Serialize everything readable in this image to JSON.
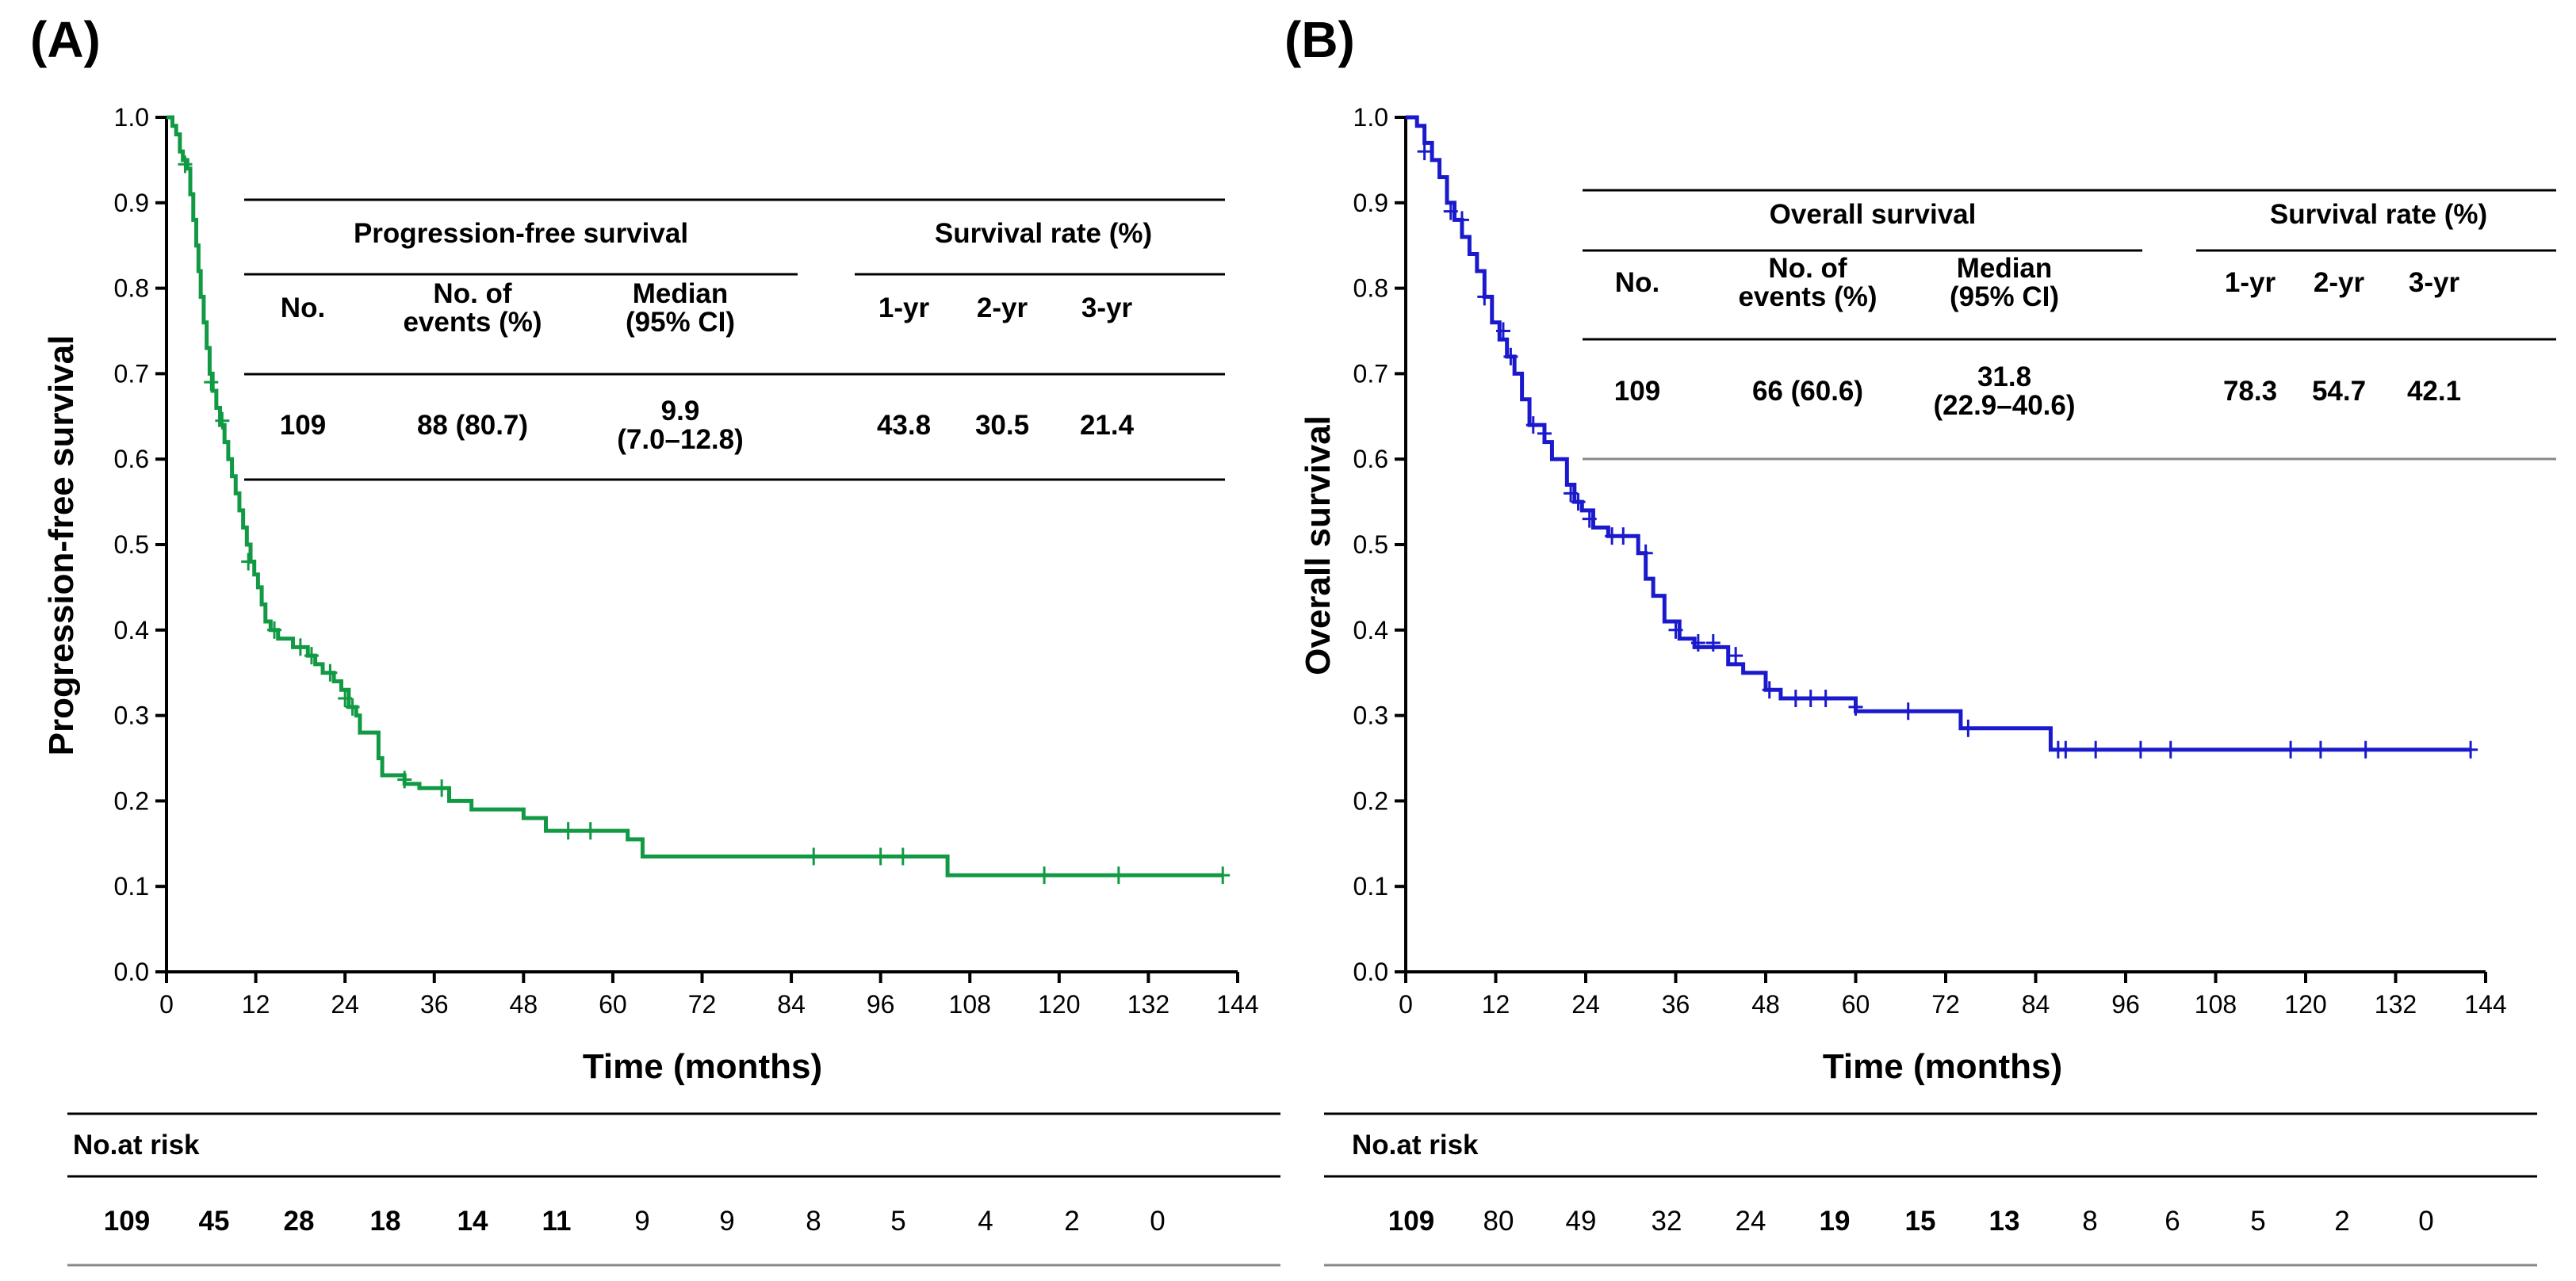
{
  "chart_data": [
    {
      "type": "line",
      "panel_label": "(A)",
      "xlabel": "Time (months)",
      "ylabel": "Progression-free survival",
      "xlim": [
        0,
        144
      ],
      "ylim": [
        0,
        1.0
      ],
      "xticks": [
        "0",
        "12",
        "24",
        "36",
        "48",
        "60",
        "72",
        "84",
        "96",
        "108",
        "120",
        "132",
        "144"
      ],
      "yticks": [
        "0.0",
        "0.1",
        "0.2",
        "0.3",
        "0.4",
        "0.5",
        "0.6",
        "0.7",
        "0.8",
        "0.9",
        "1.0"
      ],
      "color": "#119944",
      "series": [
        {
          "name": "Progression-free survival",
          "points": [
            [
              0,
              1.0
            ],
            [
              0.8,
              0.99
            ],
            [
              1.3,
              0.98
            ],
            [
              1.8,
              0.96
            ],
            [
              2.2,
              0.95
            ],
            [
              2.8,
              0.94
            ],
            [
              3.2,
              0.91
            ],
            [
              3.6,
              0.88
            ],
            [
              4.0,
              0.85
            ],
            [
              4.3,
              0.82
            ],
            [
              4.6,
              0.79
            ],
            [
              5.0,
              0.76
            ],
            [
              5.4,
              0.73
            ],
            [
              5.8,
              0.7
            ],
            [
              6.2,
              0.68
            ],
            [
              6.7,
              0.66
            ],
            [
              7.2,
              0.64
            ],
            [
              7.8,
              0.62
            ],
            [
              8.3,
              0.6
            ],
            [
              8.8,
              0.58
            ],
            [
              9.3,
              0.56
            ],
            [
              9.8,
              0.54
            ],
            [
              10.3,
              0.52
            ],
            [
              10.8,
              0.5
            ],
            [
              11.3,
              0.48
            ],
            [
              11.8,
              0.465
            ],
            [
              12.3,
              0.45
            ],
            [
              12.8,
              0.43
            ],
            [
              13.3,
              0.41
            ],
            [
              14.0,
              0.4
            ],
            [
              15.0,
              0.39
            ],
            [
              17.0,
              0.38
            ],
            [
              19.0,
              0.37
            ],
            [
              20.0,
              0.36
            ],
            [
              21.0,
              0.35
            ],
            [
              22.5,
              0.34
            ],
            [
              23.5,
              0.33
            ],
            [
              24.5,
              0.31
            ],
            [
              25.5,
              0.3
            ],
            [
              26.0,
              0.28
            ],
            [
              28.5,
              0.25
            ],
            [
              29.0,
              0.23
            ],
            [
              32.0,
              0.22
            ],
            [
              34.0,
              0.215
            ],
            [
              38.0,
              0.2
            ],
            [
              41.0,
              0.19
            ],
            [
              48.0,
              0.18
            ],
            [
              51.0,
              0.165
            ],
            [
              62.0,
              0.155
            ],
            [
              64.0,
              0.135
            ],
            [
              105.0,
              0.113
            ],
            [
              142.0,
              0.113
            ]
          ],
          "censored": [
            [
              2.5,
              0.945
            ],
            [
              6.0,
              0.69
            ],
            [
              7.5,
              0.645
            ],
            [
              11.0,
              0.48
            ],
            [
              14.5,
              0.4
            ],
            [
              18.0,
              0.38
            ],
            [
              19.5,
              0.37
            ],
            [
              22.0,
              0.35
            ],
            [
              24.0,
              0.32
            ],
            [
              25.0,
              0.31
            ],
            [
              32.0,
              0.225
            ],
            [
              37.0,
              0.215
            ],
            [
              54.0,
              0.165
            ],
            [
              57.0,
              0.165
            ],
            [
              87.0,
              0.135
            ],
            [
              96.0,
              0.135
            ],
            [
              99.0,
              0.135
            ],
            [
              118.0,
              0.113
            ],
            [
              128.0,
              0.113
            ],
            [
              142.0,
              0.113
            ]
          ]
        }
      ],
      "table": {
        "group_headers": [
          "Progression-free survival",
          "Survival rate (%)"
        ],
        "columns": [
          "No.",
          "No. of\nevents (%)",
          "Median\n(95% CI)",
          "1-yr",
          "2-yr",
          "3-yr"
        ],
        "row": [
          "109",
          "88 (80.7)",
          "9.9\n(7.0–12.8)",
          "43.8",
          "30.5",
          "21.4"
        ]
      },
      "at_risk": {
        "label": "No.at risk",
        "values": [
          "109",
          "45",
          "28",
          "18",
          "14",
          "11",
          "9",
          "9",
          "8",
          "5",
          "4",
          "2",
          "0"
        ]
      }
    },
    {
      "type": "line",
      "panel_label": "(B)",
      "xlabel": "Time (months)",
      "ylabel": "Overall survival",
      "xlim": [
        0,
        144
      ],
      "ylim": [
        0,
        1.0
      ],
      "xticks": [
        "0",
        "12",
        "24",
        "36",
        "48",
        "60",
        "72",
        "84",
        "96",
        "108",
        "120",
        "132",
        "144"
      ],
      "yticks": [
        "0.0",
        "0.1",
        "0.2",
        "0.3",
        "0.4",
        "0.5",
        "0.6",
        "0.7",
        "0.8",
        "0.9",
        "1.0"
      ],
      "color": "#1a1acc",
      "series": [
        {
          "name": "Overall survival",
          "points": [
            [
              0,
              1.0
            ],
            [
              1.5,
              0.99
            ],
            [
              2.5,
              0.97
            ],
            [
              3.5,
              0.95
            ],
            [
              4.5,
              0.93
            ],
            [
              5.5,
              0.9
            ],
            [
              6.5,
              0.88
            ],
            [
              7.5,
              0.86
            ],
            [
              8.5,
              0.84
            ],
            [
              9.5,
              0.82
            ],
            [
              10.5,
              0.79
            ],
            [
              11.5,
              0.76
            ],
            [
              12.5,
              0.74
            ],
            [
              13.5,
              0.72
            ],
            [
              14.5,
              0.7
            ],
            [
              15.5,
              0.67
            ],
            [
              16.5,
              0.64
            ],
            [
              18.5,
              0.62
            ],
            [
              19.5,
              0.6
            ],
            [
              21.5,
              0.57
            ],
            [
              22.5,
              0.55
            ],
            [
              23.5,
              0.54
            ],
            [
              25.0,
              0.52
            ],
            [
              27.0,
              0.51
            ],
            [
              31.0,
              0.49
            ],
            [
              32.0,
              0.46
            ],
            [
              33.0,
              0.44
            ],
            [
              34.5,
              0.41
            ],
            [
              36.5,
              0.39
            ],
            [
              38.5,
              0.38
            ],
            [
              43.0,
              0.36
            ],
            [
              45.0,
              0.35
            ],
            [
              48.0,
              0.33
            ],
            [
              50.0,
              0.32
            ],
            [
              58.0,
              0.32
            ],
            [
              60.0,
              0.305
            ],
            [
              74.0,
              0.285
            ],
            [
              86.0,
              0.26
            ],
            [
              142.0,
              0.26
            ]
          ],
          "censored": [
            [
              2.5,
              0.96
            ],
            [
              6.0,
              0.89
            ],
            [
              7.5,
              0.88
            ],
            [
              10.5,
              0.79
            ],
            [
              13.0,
              0.75
            ],
            [
              14.0,
              0.72
            ],
            [
              17.0,
              0.64
            ],
            [
              18.5,
              0.63
            ],
            [
              22.0,
              0.56
            ],
            [
              23.0,
              0.55
            ],
            [
              24.5,
              0.53
            ],
            [
              27.5,
              0.51
            ],
            [
              29.0,
              0.51
            ],
            [
              32.0,
              0.49
            ],
            [
              36.0,
              0.4
            ],
            [
              39.0,
              0.385
            ],
            [
              41.0,
              0.385
            ],
            [
              44.0,
              0.37
            ],
            [
              48.5,
              0.33
            ],
            [
              52.0,
              0.32
            ],
            [
              54.0,
              0.32
            ],
            [
              56.0,
              0.32
            ],
            [
              60.0,
              0.31
            ],
            [
              67.0,
              0.305
            ],
            [
              75.0,
              0.285
            ],
            [
              87.0,
              0.26
            ],
            [
              88.0,
              0.26
            ],
            [
              92.0,
              0.26
            ],
            [
              98.0,
              0.26
            ],
            [
              102.0,
              0.26
            ],
            [
              118.0,
              0.26
            ],
            [
              122.0,
              0.26
            ],
            [
              128.0,
              0.26
            ],
            [
              142.0,
              0.26
            ]
          ]
        }
      ],
      "table": {
        "group_headers": [
          "Overall survival",
          "Survival rate (%)"
        ],
        "columns": [
          "No.",
          "No. of\nevents (%)",
          "Median\n(95% CI)",
          "1-yr",
          "2-yr",
          "3-yr"
        ],
        "row": [
          "109",
          "66 (60.6)",
          "31.8\n(22.9–40.6)",
          "78.3",
          "54.7",
          "42.1"
        ]
      },
      "at_risk": {
        "label": "No.at risk",
        "values": [
          "109",
          "80",
          "49",
          "32",
          "24",
          "19",
          "15",
          "13",
          "8",
          "6",
          "5",
          "2",
          "0"
        ]
      }
    }
  ]
}
